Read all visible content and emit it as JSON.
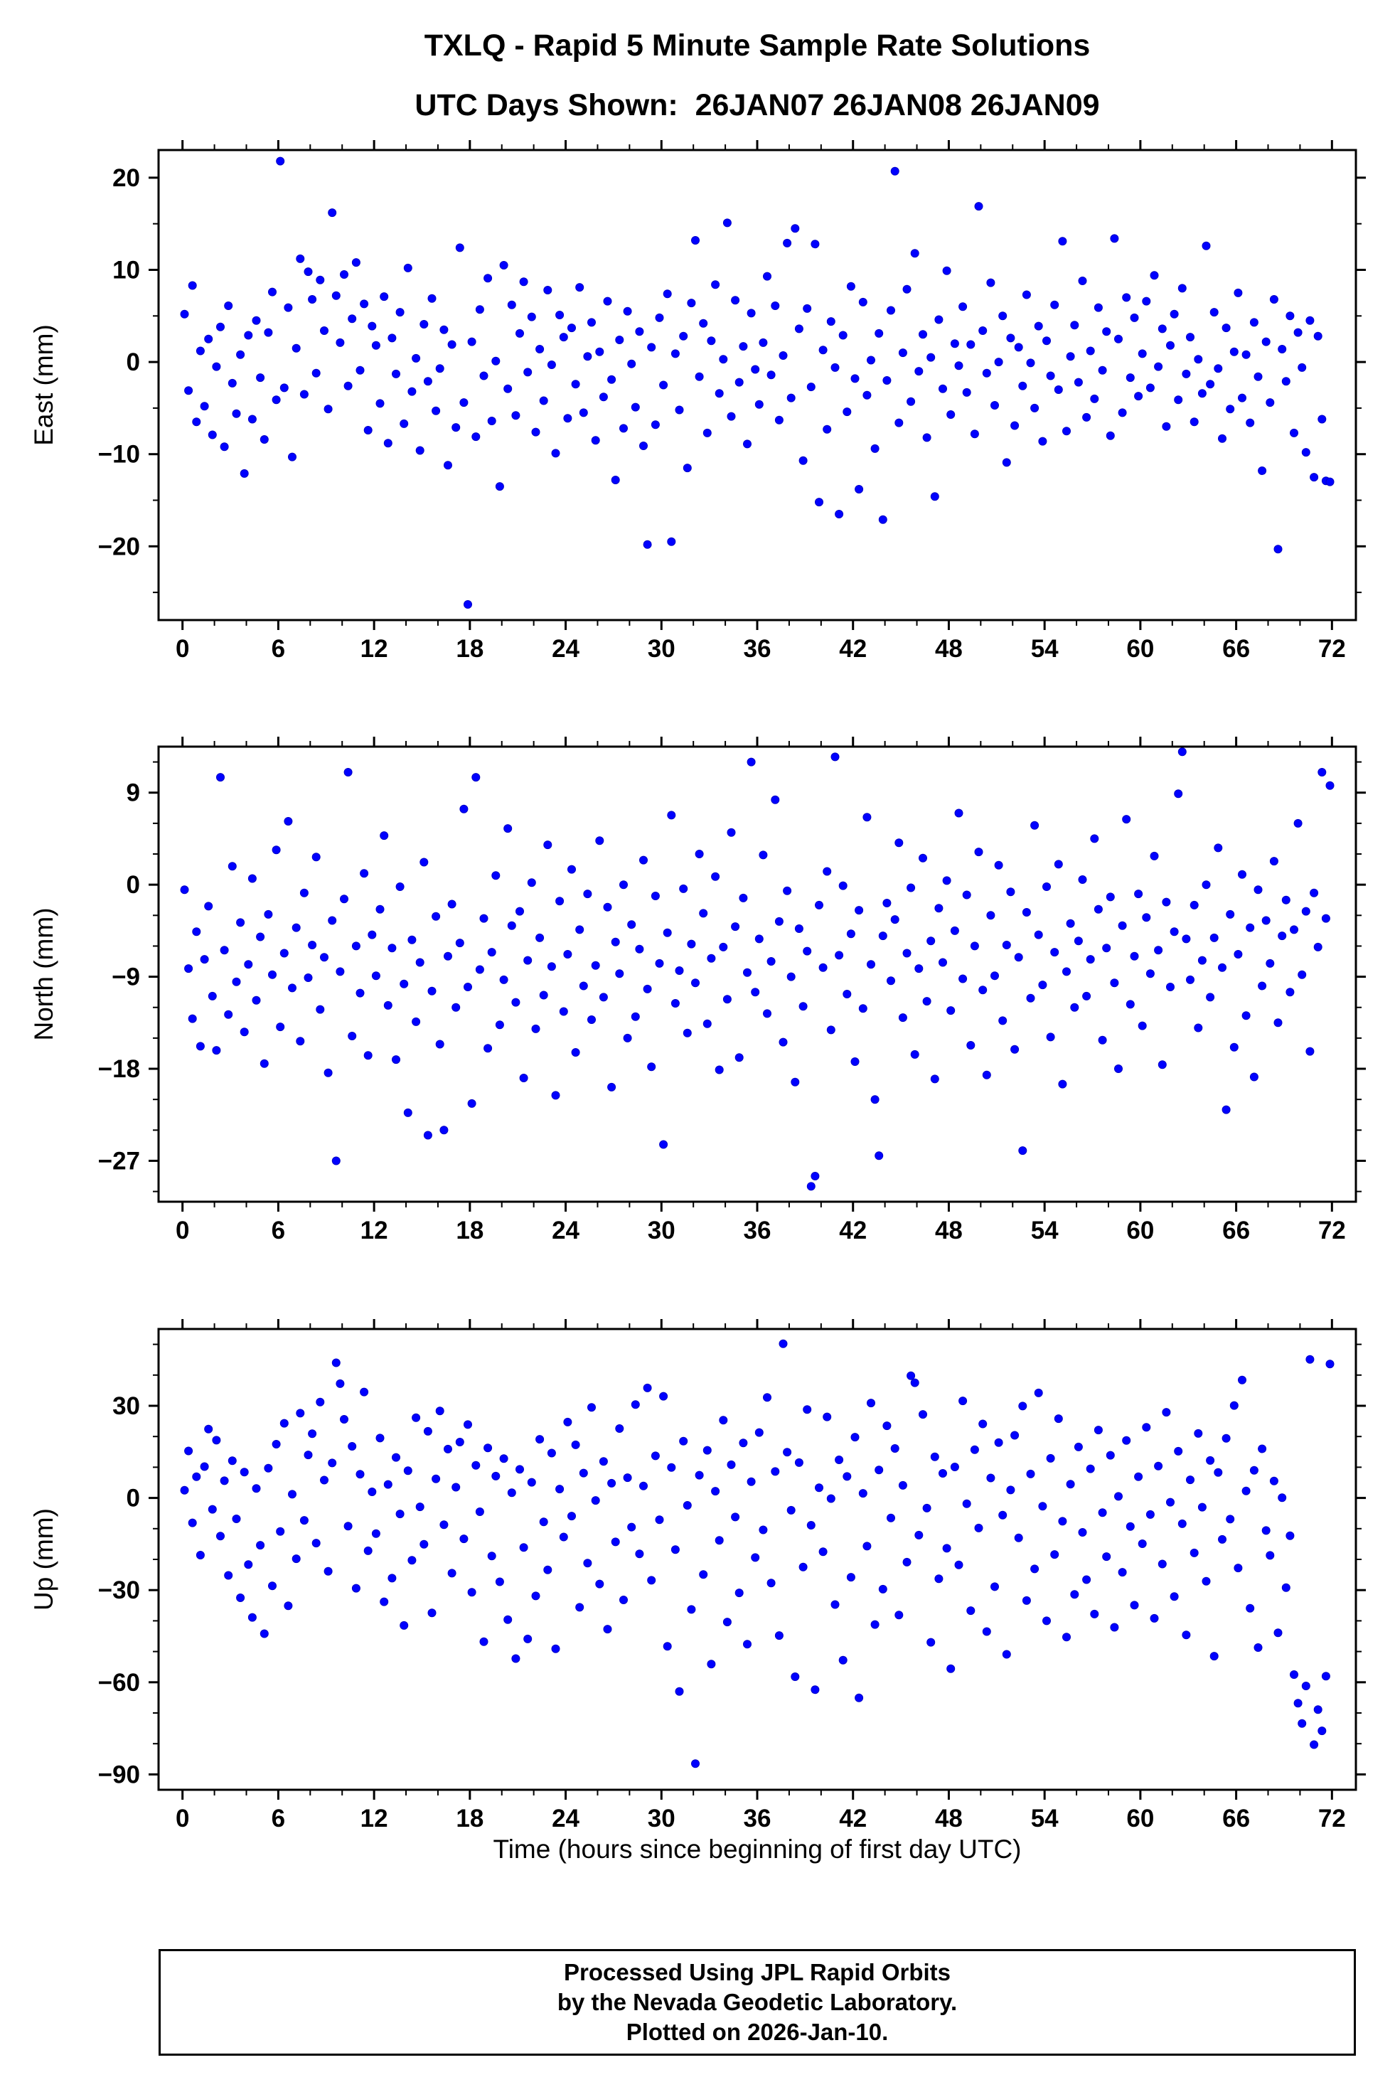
{
  "header": {
    "title_line1": "TXLQ - Rapid 5 Minute Sample Rate Solutions",
    "title_line2": "UTC Days Shown:  26JAN07 26JAN08 26JAN09"
  },
  "footer": {
    "line1": "Processed Using JPL Rapid Orbits",
    "line2": "by the Nevada Geodetic Laboratory.",
    "line3": "Plotted on 2026-Jan-10."
  },
  "chart_data": {
    "type": "scatter",
    "title": "TXLQ - Rapid 5 Minute Sample Rate Solutions",
    "subtitle": "UTC Days Shown:  26JAN07 26JAN08 26JAN09",
    "xlabel": "Time (hours since beginning of first day UTC)",
    "marker": {
      "color": "#0000ff",
      "edge": "#0000c8",
      "radius": 5.5
    },
    "x_axis": {
      "lim": [
        -1.5,
        73.5
      ],
      "ticks": [
        0,
        6,
        12,
        18,
        24,
        30,
        36,
        42,
        48,
        54,
        60,
        66,
        72
      ],
      "minor_step": 2
    },
    "x_start": 0.125,
    "x_step": 0.25,
    "panels": [
      {
        "name": "east",
        "ylabel": "East (mm)",
        "ylim": [
          -28,
          23
        ],
        "yticks": [
          -20,
          -10,
          0,
          10,
          20
        ],
        "y_minor_step": 5,
        "y": [
          5.2,
          -3.1,
          8.3,
          -6.5,
          1.2,
          -4.8,
          2.5,
          -7.9,
          -0.5,
          3.8,
          -9.2,
          6.1,
          -2.3,
          -5.6,
          0.8,
          -12.1,
          2.9,
          -6.2,
          4.5,
          -1.7,
          -8.4,
          3.2,
          7.6,
          -4.1,
          21.8,
          -2.8,
          5.9,
          -10.3,
          1.5,
          11.2,
          -3.5,
          9.8,
          6.8,
          -1.2,
          8.9,
          3.4,
          -5.1,
          16.2,
          7.2,
          2.1,
          9.5,
          -2.6,
          4.7,
          10.8,
          -0.9,
          6.3,
          -7.4,
          3.9,
          1.8,
          -4.5,
          7.1,
          -8.8,
          2.6,
          -1.3,
          5.4,
          -6.7,
          10.2,
          -3.2,
          0.4,
          -9.6,
          4.1,
          -2.1,
          6.9,
          -5.3,
          -0.7,
          3.5,
          -11.2,
          1.9,
          -7.1,
          12.4,
          -4.4,
          -26.3,
          2.2,
          -8.1,
          5.7,
          -1.5,
          9.1,
          -6.4,
          0.1,
          -13.5,
          10.5,
          -2.9,
          6.2,
          -5.8,
          3.1,
          8.7,
          -1.1,
          4.9,
          -7.6,
          1.4,
          -4.2,
          7.8,
          -0.3,
          -9.9,
          5.1,
          2.7,
          -6.1,
          3.7,
          -2.4,
          8.1,
          -5.5,
          0.6,
          4.3,
          -8.5,
          1.1,
          -3.8,
          6.6,
          -1.9,
          -12.8,
          2.4,
          -7.2,
          5.5,
          -0.2,
          -4.9,
          3.3,
          -9.1,
          -19.8,
          1.6,
          -6.8,
          4.8,
          -2.5,
          7.4,
          -19.5,
          0.9,
          -5.2,
          2.8,
          -11.5,
          6.4,
          13.2,
          -1.6,
          4.2,
          -7.7,
          2.3,
          8.4,
          -3.4,
          0.3,
          15.1,
          -5.9,
          6.7,
          -2.2,
          1.7,
          -8.9,
          5.3,
          -0.8,
          -4.6,
          2.1,
          9.3,
          -1.4,
          6.1,
          -6.3,
          0.7,
          12.9,
          -3.9,
          14.5,
          3.6,
          -10.7,
          5.8,
          -2.7,
          12.8,
          -15.2,
          1.3,
          -7.3,
          4.4,
          -0.6,
          -16.5,
          2.9,
          -5.4,
          8.2,
          -1.8,
          -13.8,
          6.5,
          -3.6,
          0.2,
          -9.4,
          3.1,
          -17.1,
          -2.0,
          5.6,
          20.7,
          -6.6,
          1.0,
          7.9,
          -4.3,
          11.8,
          -1.0,
          3.0,
          -8.2,
          0.5,
          -14.6,
          4.6,
          -2.9,
          9.9,
          -5.7,
          2.0,
          -0.4,
          6.0,
          -3.3,
          1.9,
          -7.8,
          16.9,
          3.4,
          -1.2,
          8.6,
          -4.7,
          0.0,
          5.0,
          -10.9,
          2.6,
          -6.9,
          1.6,
          -2.6,
          7.3,
          -0.1,
          -5.0,
          3.9,
          -8.6,
          2.3,
          -1.5,
          6.2,
          -3.0,
          13.1,
          -7.5,
          0.6,
          4.0,
          -2.2,
          8.8,
          -6.0,
          1.2,
          -4.0,
          5.9,
          -0.9,
          3.3,
          -8.0,
          13.4,
          2.5,
          -5.5,
          7.0,
          -1.7,
          4.8,
          -3.7,
          0.9,
          6.6,
          -2.8,
          9.4,
          -0.5,
          3.6,
          -7.0,
          1.8,
          5.2,
          -4.1,
          8.0,
          -1.3,
          2.7,
          -6.5,
          0.3,
          -3.4,
          12.6,
          -2.4,
          5.4,
          -0.7,
          -8.3,
          3.7,
          -5.1,
          1.1,
          7.5,
          -3.9,
          0.8,
          -6.6,
          4.3,
          -1.6,
          -11.8,
          2.2,
          -4.4,
          6.8,
          -20.3,
          1.4,
          -2.1,
          5.0,
          -7.7,
          3.2,
          -0.6,
          -9.8,
          4.5,
          -12.5,
          2.8,
          -6.2,
          -12.9,
          -13.0
        ]
      },
      {
        "name": "north",
        "ylabel": "North (mm)",
        "ylim": [
          -31,
          13.5
        ],
        "yticks": [
          -27,
          -18,
          -9,
          0,
          9
        ],
        "y_minor_step": 3,
        "y": [
          -0.5,
          -8.2,
          -13.1,
          -4.6,
          -15.8,
          -7.3,
          -2.1,
          -10.9,
          -16.2,
          10.5,
          -6.4,
          -12.7,
          1.8,
          -9.5,
          -3.7,
          -14.4,
          -7.8,
          0.6,
          -11.3,
          -5.1,
          -17.5,
          -2.9,
          -8.8,
          3.4,
          -13.9,
          -6.7,
          6.2,
          -10.1,
          -4.2,
          -15.3,
          -0.8,
          -9.1,
          -5.9,
          2.7,
          -12.2,
          -7.1,
          -18.4,
          -3.5,
          -27.0,
          -8.5,
          -1.4,
          11.0,
          -14.8,
          -6.0,
          -10.6,
          1.1,
          -16.7,
          -4.9,
          -8.9,
          -2.4,
          4.8,
          -11.8,
          -6.2,
          -17.1,
          -0.2,
          -9.7,
          -22.3,
          -5.4,
          -13.4,
          -7.6,
          2.2,
          -24.5,
          -10.4,
          -3.1,
          -15.6,
          -24.0,
          -7.0,
          -1.9,
          -12.0,
          -5.7,
          7.4,
          -10.0,
          -21.4,
          10.5,
          -8.3,
          -3.3,
          -16.0,
          -6.6,
          0.9,
          -13.7,
          -9.3,
          5.5,
          -4.0,
          -11.5,
          -2.6,
          -18.9,
          -7.4,
          0.2,
          -14.1,
          -5.2,
          -10.8,
          3.9,
          -8.0,
          -20.6,
          -1.6,
          -12.4,
          -6.8,
          1.5,
          -16.4,
          -4.4,
          -9.9,
          -0.9,
          -13.2,
          -7.9,
          4.3,
          -11.0,
          -2.2,
          -19.8,
          -5.6,
          -8.7,
          0.0,
          -15.0,
          -3.9,
          -12.9,
          -6.3,
          2.4,
          -10.2,
          -17.8,
          -1.1,
          -7.7,
          -25.4,
          -4.7,
          6.8,
          -11.6,
          -8.4,
          -0.4,
          -14.5,
          -5.8,
          -9.6,
          3.0,
          -2.8,
          -13.6,
          -7.2,
          0.8,
          -18.1,
          -6.1,
          -11.2,
          5.1,
          -4.1,
          -16.9,
          -1.3,
          -8.6,
          12.0,
          -10.5,
          -5.3,
          2.9,
          -12.6,
          -7.5,
          8.3,
          -3.6,
          -15.4,
          -0.6,
          -9.0,
          -19.3,
          -4.3,
          -11.9,
          -6.5,
          -29.5,
          -28.5,
          -2.0,
          -8.1,
          1.3,
          -14.2,
          12.5,
          -6.9,
          -0.1,
          -10.7,
          -4.8,
          -17.3,
          -2.5,
          -12.1,
          6.6,
          -7.8,
          -21.0,
          -26.5,
          -5.0,
          -1.8,
          -9.4,
          -3.4,
          4.1,
          -13.0,
          -6.7,
          -0.3,
          -16.6,
          -8.2,
          2.6,
          -11.4,
          -5.5,
          -19.0,
          -2.3,
          -7.6,
          0.4,
          -12.3,
          -4.5,
          7.0,
          -9.2,
          -1.0,
          -15.7,
          -6.0,
          3.2,
          -10.3,
          -18.6,
          -3.0,
          -8.9,
          1.9,
          -13.3,
          -5.9,
          -0.7,
          -16.1,
          -7.1,
          -26.0,
          -2.7,
          -11.1,
          5.8,
          -4.9,
          -9.8,
          -0.2,
          -14.9,
          -6.6,
          2.0,
          -19.5,
          -8.5,
          -3.8,
          -12.0,
          -5.5,
          0.5,
          -10.9,
          -7.3,
          4.5,
          -2.4,
          -15.2,
          -6.2,
          -1.2,
          -9.6,
          -18.0,
          -4.0,
          6.4,
          -11.7,
          -7.0,
          -0.9,
          -13.8,
          -3.2,
          -8.7,
          2.8,
          -6.4,
          -17.6,
          -1.7,
          -10.0,
          -4.6,
          8.9,
          13.0,
          -5.3,
          -9.3,
          -2.0,
          -14.0,
          -7.4,
          0.0,
          -11.0,
          -5.2,
          3.6,
          -8.1,
          -22.0,
          -2.9,
          -15.9,
          -6.8,
          1.0,
          -12.8,
          -4.2,
          -18.8,
          -0.5,
          -9.9,
          -3.5,
          -7.7,
          2.3,
          -13.5,
          -5.0,
          -1.5,
          -10.5,
          -4.4,
          6.0,
          -8.8,
          -2.6,
          -16.3,
          -0.8,
          -6.1,
          11.0,
          -3.3,
          9.7
        ]
      },
      {
        "name": "up",
        "ylabel": "Up (mm)",
        "ylim": [
          -95,
          55
        ],
        "yticks": [
          -90,
          -60,
          -30,
          0,
          30
        ],
        "y_minor_step": 10,
        "y": [
          2.5,
          15.3,
          -8.1,
          6.9,
          -18.6,
          10.2,
          22.4,
          -3.7,
          18.8,
          -12.4,
          5.6,
          -25.2,
          12.1,
          -6.8,
          -32.5,
          8.4,
          -21.7,
          -38.9,
          3.1,
          -15.4,
          -44.2,
          9.7,
          -28.6,
          17.5,
          -10.9,
          24.3,
          -35.1,
          1.2,
          -19.8,
          27.6,
          -7.3,
          14.0,
          20.9,
          -14.7,
          31.2,
          5.8,
          -23.9,
          11.4,
          44.0,
          37.2,
          25.6,
          -9.2,
          16.8,
          -29.4,
          7.7,
          34.5,
          -17.2,
          2.0,
          -11.6,
          19.5,
          -33.8,
          4.4,
          -26.1,
          13.2,
          -5.2,
          -41.5,
          8.9,
          -20.3,
          26.1,
          -2.9,
          -15.1,
          21.7,
          -37.4,
          6.2,
          28.3,
          -8.7,
          15.9,
          -24.5,
          3.5,
          18.2,
          -13.3,
          23.9,
          -30.7,
          10.6,
          -4.5,
          -46.8,
          16.3,
          -18.9,
          7.1,
          -27.3,
          12.8,
          -39.6,
          1.7,
          -52.3,
          9.3,
          -16.1,
          -45.9,
          5.1,
          -31.9,
          19.1,
          -7.8,
          -23.4,
          14.6,
          -49.1,
          2.9,
          -12.7,
          24.7,
          -5.9,
          17.3,
          -35.6,
          8.1,
          -21.2,
          29.5,
          -0.8,
          -28.0,
          11.9,
          -42.7,
          4.8,
          -14.3,
          22.6,
          -33.2,
          6.6,
          -9.5,
          30.4,
          -18.2,
          3.9,
          35.8,
          -26.8,
          13.7,
          -7.1,
          33.1,
          -48.3,
          9.9,
          -16.8,
          -63.0,
          18.5,
          -2.4,
          -36.3,
          -86.5,
          7.4,
          -24.9,
          15.5,
          -54.1,
          2.2,
          -13.8,
          25.3,
          -40.4,
          10.8,
          -6.2,
          -30.9,
          17.9,
          -47.6,
          5.3,
          -19.4,
          21.3,
          -10.4,
          32.7,
          -27.7,
          8.6,
          -44.8,
          50.2,
          14.9,
          -4.0,
          -58.2,
          11.5,
          -22.5,
          28.8,
          -8.9,
          -62.4,
          3.3,
          -17.5,
          26.4,
          -0.2,
          -34.7,
          12.4,
          -52.8,
          7.0,
          -25.8,
          19.8,
          -65.1,
          1.5,
          -15.7,
          30.9,
          -41.2,
          9.1,
          -29.7,
          23.5,
          -6.5,
          16.1,
          -38.1,
          4.1,
          -20.9,
          39.8,
          37.5,
          -12.1,
          27.2,
          -3.3,
          -47.0,
          13.4,
          -26.3,
          8.0,
          -16.4,
          -55.6,
          10.1,
          -21.8,
          31.6,
          -1.9,
          -36.7,
          15.7,
          -9.8,
          24.1,
          -43.5,
          6.5,
          -28.9,
          18.0,
          -5.6,
          -50.9,
          2.6,
          20.4,
          -13.0,
          29.9,
          -33.4,
          7.8,
          -23.1,
          34.2,
          -2.7,
          -40.0,
          12.9,
          -18.4,
          25.8,
          -7.6,
          -45.3,
          4.5,
          -31.4,
          16.6,
          -11.2,
          -26.6,
          9.5,
          -37.8,
          22.1,
          -4.8,
          -19.1,
          13.9,
          -42.1,
          0.5,
          -24.2,
          18.7,
          -9.3,
          -34.9,
          6.9,
          -14.9,
          23.0,
          -5.4,
          -39.2,
          10.4,
          -21.5,
          27.9,
          -1.4,
          -32.1,
          15.2,
          -8.4,
          -44.6,
          5.9,
          -17.9,
          21.0,
          -3.0,
          -27.1,
          12.2,
          -51.5,
          8.3,
          -13.5,
          19.4,
          -6.9,
          30.1,
          -22.8,
          38.4,
          2.3,
          -35.9,
          9.0,
          -48.7,
          16.0,
          -10.6,
          -18.7,
          5.5,
          -43.9,
          0.1,
          -29.2,
          -12.3,
          -57.5,
          -66.8,
          -73.4,
          -61.2,
          45.1,
          -80.3,
          -68.9,
          -75.8,
          -58.0,
          43.6
        ]
      }
    ]
  }
}
